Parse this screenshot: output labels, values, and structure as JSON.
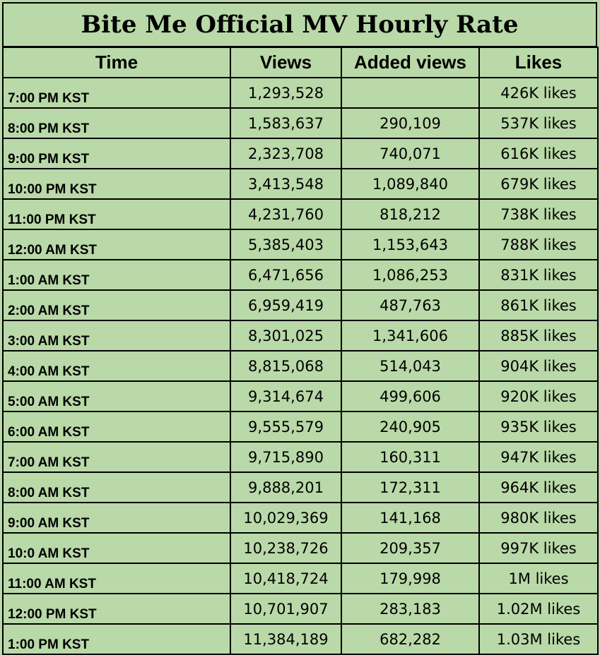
{
  "chart_data": {
    "type": "table",
    "title": "Bite Me Official MV Hourly Rate",
    "columns": [
      "Time",
      "Views",
      "Added views",
      "Likes"
    ],
    "rows": [
      [
        "7:00 PM KST",
        "1,293,528",
        "",
        "426K likes"
      ],
      [
        "8:00 PM KST",
        "1,583,637",
        "290,109",
        "537K likes"
      ],
      [
        "9:00 PM KST",
        "2,323,708",
        "740,071",
        "616K likes"
      ],
      [
        "10:00 PM KST",
        "3,413,548",
        "1,089,840",
        "679K likes"
      ],
      [
        "11:00 PM KST",
        "4,231,760",
        "818,212",
        "738K likes"
      ],
      [
        "12:00 AM KST",
        "5,385,403",
        "1,153,643",
        "788K likes"
      ],
      [
        "1:00 AM KST",
        "6,471,656",
        "1,086,253",
        "831K likes"
      ],
      [
        "2:00 AM KST",
        "6,959,419",
        "487,763",
        "861K likes"
      ],
      [
        "3:00 AM KST",
        "8,301,025",
        "1,341,606",
        "885K likes"
      ],
      [
        "4:00 AM KST",
        "8,815,068",
        "514,043",
        "904K likes"
      ],
      [
        "5:00 AM KST",
        "9,314,674",
        "499,606",
        "920K likes"
      ],
      [
        "6:00 AM KST",
        "9,555,579",
        "240,905",
        "935K likes"
      ],
      [
        "7:00 AM KST",
        "9,715,890",
        "160,311",
        "947K likes"
      ],
      [
        "8:00 AM KST",
        "9,888,201",
        "172,311",
        "964K likes"
      ],
      [
        "9:00 AM KST",
        "10,029,369",
        "141,168",
        "980K likes"
      ],
      [
        "10:0 AM KST",
        "10,238,726",
        "209,357",
        "997K likes"
      ],
      [
        "11:00 AM KST",
        "10,418,724",
        "179,998",
        "1M likes"
      ],
      [
        "12:00 PM KST",
        "10,701,907",
        "283,183",
        "1.02M likes"
      ],
      [
        "1:00 PM KST",
        "11,384,189",
        "682,282",
        "1.03M likes"
      ]
    ]
  }
}
